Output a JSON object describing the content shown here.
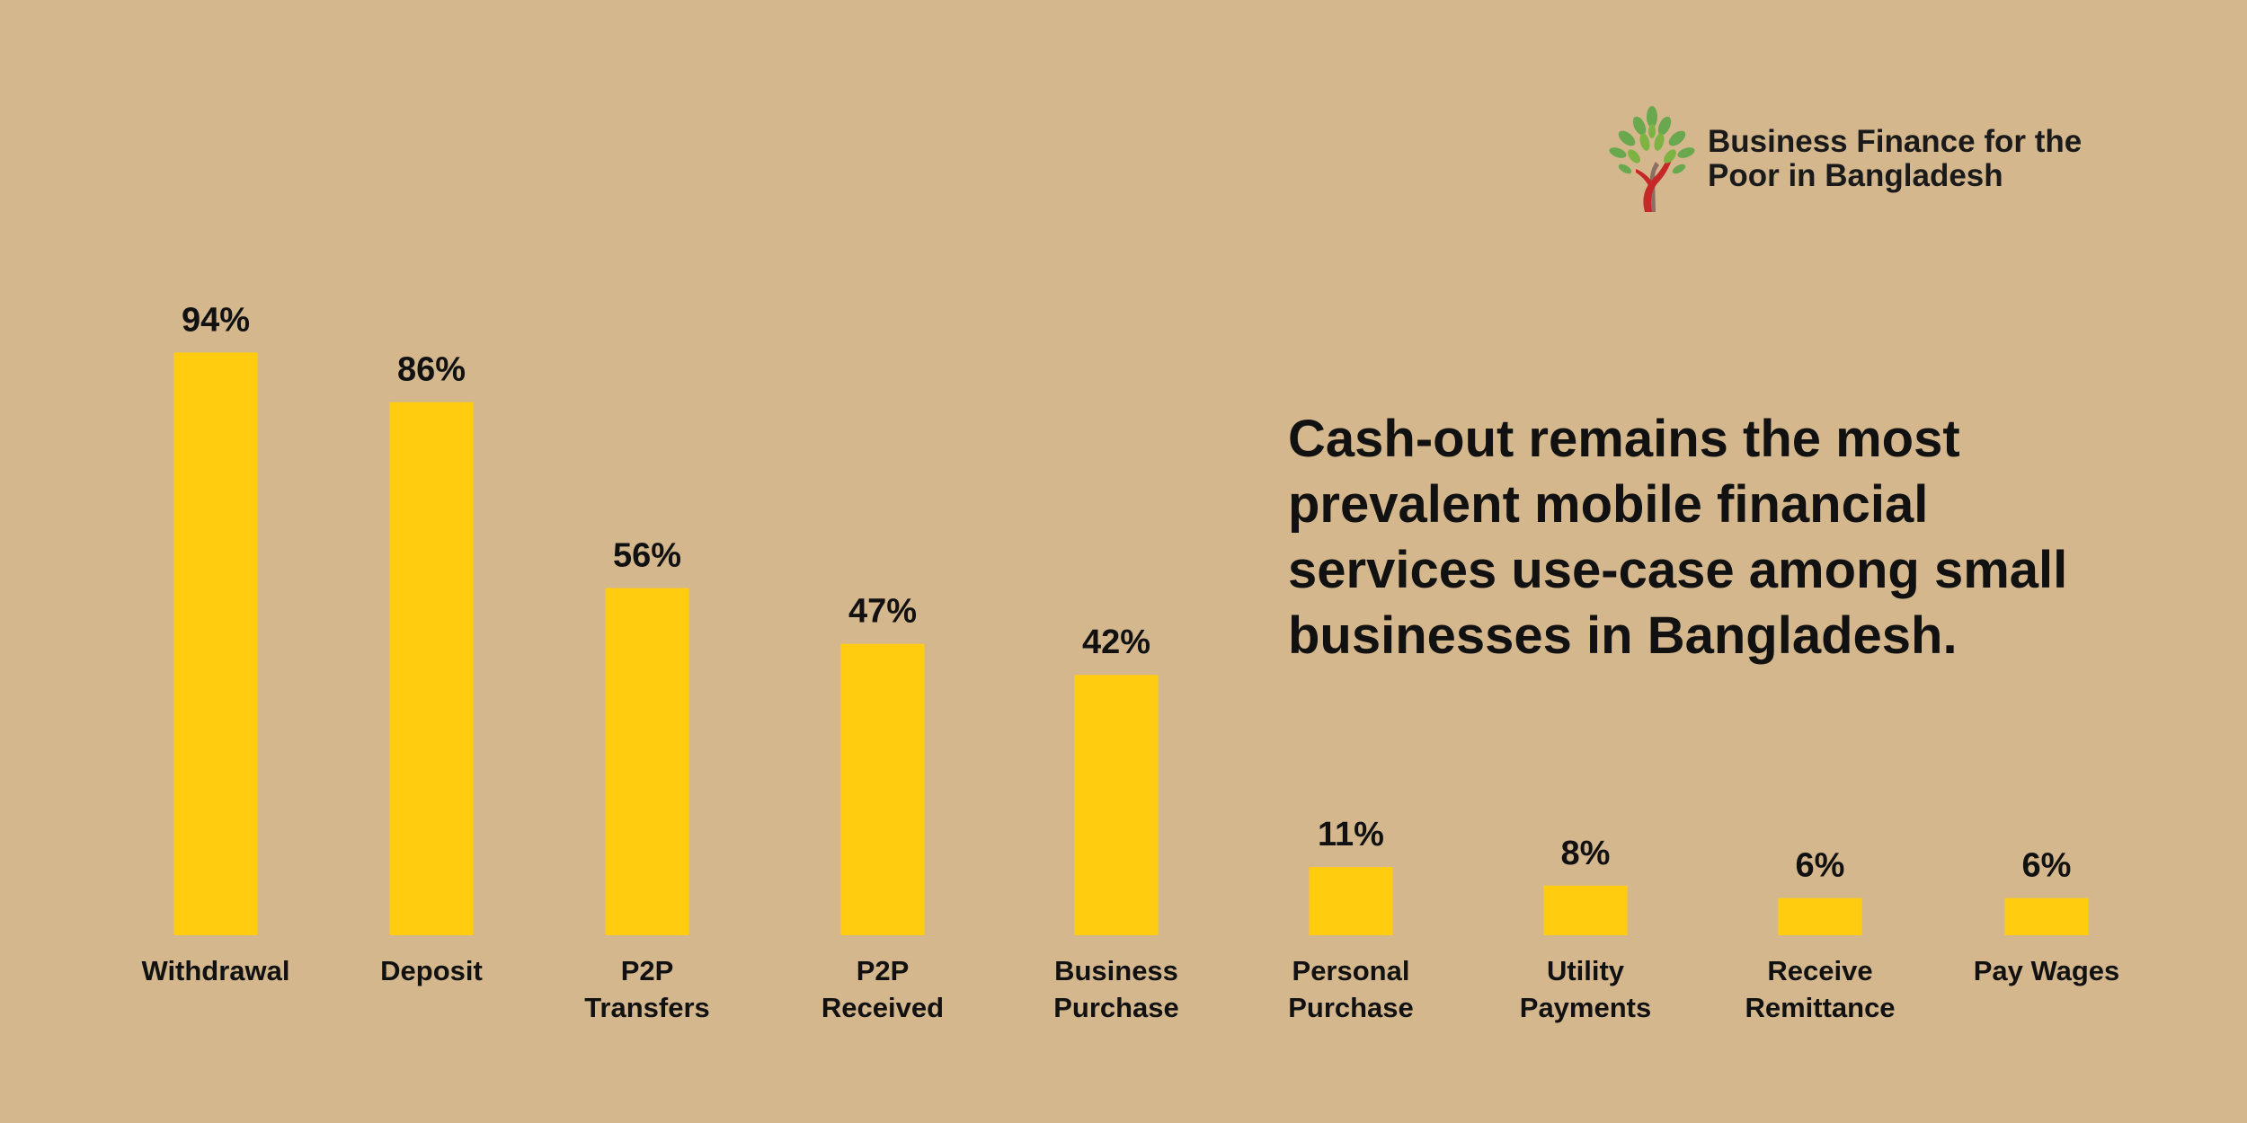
{
  "brand": {
    "line1": "Business Finance for the",
    "line2": "Poor in Bangladesh",
    "logo_icon": "tree-icon"
  },
  "headline": [
    "Cash-out remains the most",
    "prevalent mobile financial",
    "services use-case among small",
    "businesses in Bangladesh."
  ],
  "colors": {
    "background": "#d4b78d",
    "bar": "#ffcc0f",
    "text": "#111111"
  },
  "chart_data": {
    "type": "bar",
    "title": "",
    "xlabel": "",
    "ylabel": "",
    "ylim": [
      0,
      100
    ],
    "grid": false,
    "value_suffix": "%",
    "categories": [
      [
        "Withdrawal"
      ],
      [
        "Deposit"
      ],
      [
        "P2P",
        "Transfers"
      ],
      [
        "P2P",
        "Received"
      ],
      [
        "Business",
        "Purchase"
      ],
      [
        "Personal",
        "Purchase"
      ],
      [
        "Utility",
        "Payments"
      ],
      [
        "Receive",
        "Remittance"
      ],
      [
        "Pay Wages"
      ]
    ],
    "values": [
      94,
      86,
      56,
      47,
      42,
      11,
      8,
      6,
      6
    ],
    "labels": [
      "94%",
      "86%",
      "56%",
      "47%",
      "42%",
      "11%",
      "8%",
      "6%",
      "6%"
    ]
  }
}
